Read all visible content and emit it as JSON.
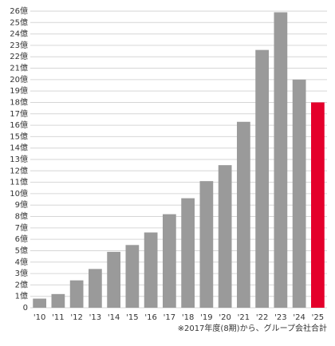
{
  "chart_data": {
    "type": "bar",
    "categories": [
      "'10",
      "'11",
      "'12",
      "'13",
      "'14",
      "'15",
      "'16",
      "'17",
      "'18",
      "'19",
      "'20",
      "'21",
      "'22",
      "'23",
      "'24",
      "'25"
    ],
    "values": [
      0.8,
      1.2,
      2.4,
      3.4,
      4.9,
      5.5,
      6.6,
      8.2,
      9.6,
      11.1,
      12.5,
      16.3,
      22.6,
      25.9,
      20.0,
      18.0
    ],
    "colors": [
      "#9a9a9a",
      "#9a9a9a",
      "#9a9a9a",
      "#9a9a9a",
      "#9a9a9a",
      "#9a9a9a",
      "#9a9a9a",
      "#9a9a9a",
      "#9a9a9a",
      "#9a9a9a",
      "#9a9a9a",
      "#9a9a9a",
      "#9a9a9a",
      "#9a9a9a",
      "#9a9a9a",
      "#e4002b"
    ],
    "ylim": [
      0,
      26
    ],
    "yticks": [
      0,
      {
        "value": 1,
        "label": "1億"
      },
      {
        "value": 2,
        "label": "2億"
      },
      {
        "value": 3,
        "label": "3億"
      },
      {
        "value": 4,
        "label": "4億"
      },
      {
        "value": 5,
        "label": "5億"
      },
      {
        "value": 6,
        "label": "6億"
      },
      {
        "value": 7,
        "label": "7億"
      },
      {
        "value": 8,
        "label": "8億"
      },
      {
        "value": 9,
        "label": "9億"
      },
      {
        "value": 10,
        "label": "10億"
      },
      {
        "value": 11,
        "label": "11億"
      },
      {
        "value": 12,
        "label": "12億"
      },
      {
        "value": 13,
        "label": "13億"
      },
      {
        "value": 14,
        "label": "14億"
      },
      {
        "value": 15,
        "label": "15億"
      },
      {
        "value": 16,
        "label": "16億"
      },
      {
        "value": 17,
        "label": "17億"
      },
      {
        "value": 18,
        "label": "18億"
      },
      {
        "value": 19,
        "label": "19億"
      },
      {
        "value": 20,
        "label": "20億"
      },
      {
        "value": 21,
        "label": "21億"
      },
      {
        "value": 22,
        "label": "22億"
      },
      {
        "value": 23,
        "label": "23億"
      },
      {
        "value": 24,
        "label": "24億"
      },
      {
        "value": 25,
        "label": "25億"
      },
      {
        "value": 26,
        "label": "26億"
      }
    ],
    "grid": true,
    "note": "※2017年度(8期)から、グループ会社合計"
  }
}
